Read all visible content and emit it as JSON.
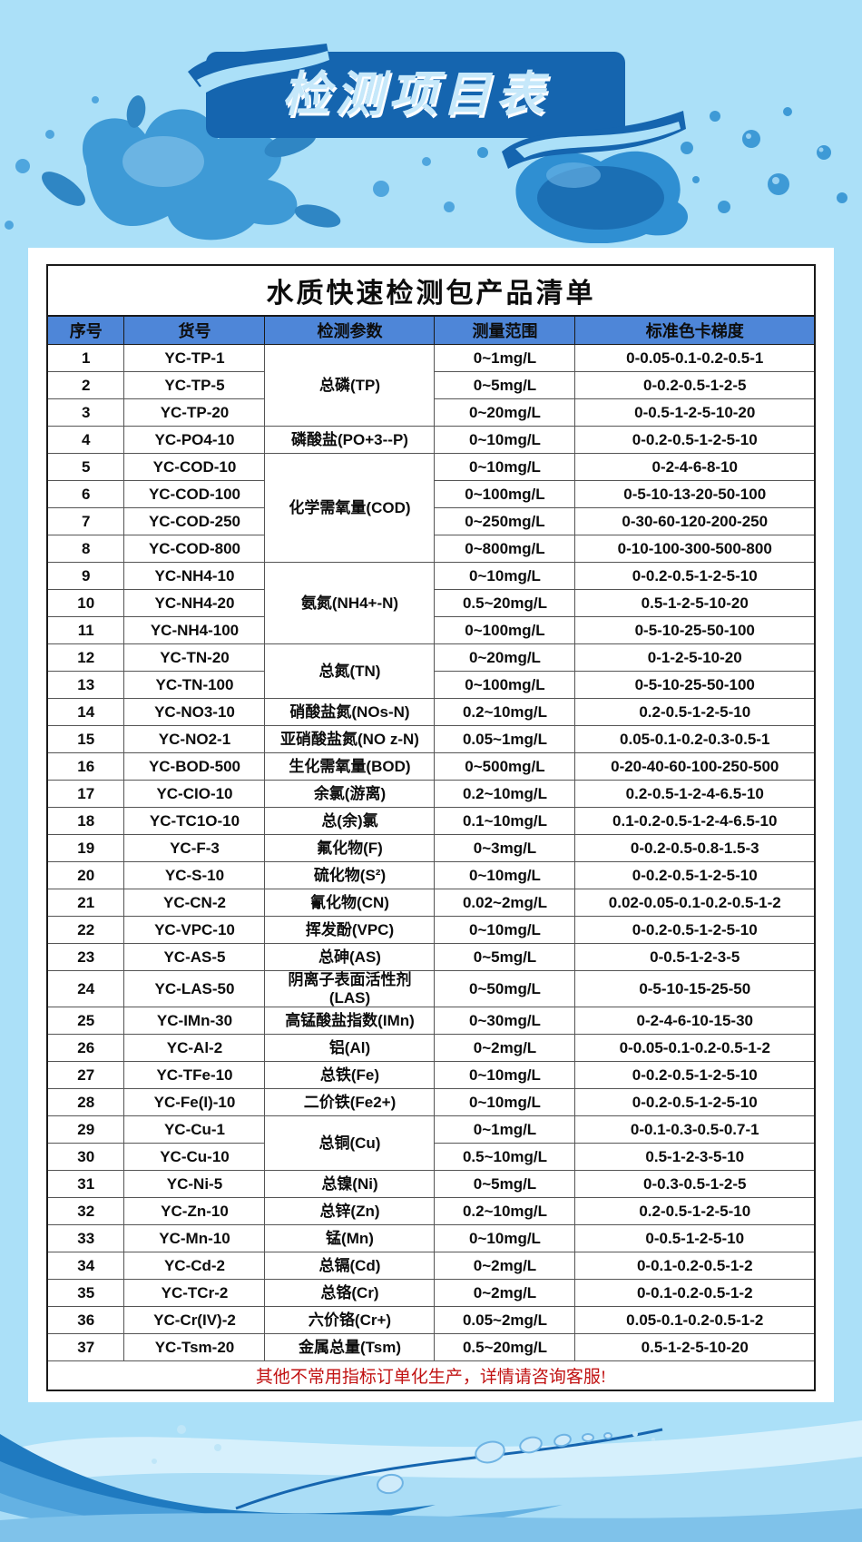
{
  "banner": {
    "title": "检测项目表"
  },
  "card": {
    "title": "水质快速检测包产品清单",
    "columns": [
      "序号",
      "货号",
      "检测参数",
      "测量范围",
      "标准色卡梯度"
    ],
    "footer_note": "其他不常用指标订单化生产，详情请咨询客服!",
    "rows": [
      {
        "no": "1",
        "code": "YC-TP-1",
        "param": "总磷(TP)",
        "param_rowspan": 3,
        "range": "0~1mg/L",
        "gradient": "0-0.05-0.1-0.2-0.5-1"
      },
      {
        "no": "2",
        "code": "YC-TP-5",
        "range": "0~5mg/L",
        "gradient": "0-0.2-0.5-1-2-5"
      },
      {
        "no": "3",
        "code": "YC-TP-20",
        "range": "0~20mg/L",
        "gradient": "0-0.5-1-2-5-10-20"
      },
      {
        "no": "4",
        "code": "YC-PO4-10",
        "param": "磷酸盐(PO+3--P)",
        "param_rowspan": 1,
        "range": "0~10mg/L",
        "gradient": "0-0.2-0.5-1-2-5-10"
      },
      {
        "no": "5",
        "code": "YC-COD-10",
        "param": "化学需氧量(COD)",
        "param_rowspan": 4,
        "range": "0~10mg/L",
        "gradient": "0-2-4-6-8-10"
      },
      {
        "no": "6",
        "code": "YC-COD-100",
        "range": "0~100mg/L",
        "gradient": "0-5-10-13-20-50-100"
      },
      {
        "no": "7",
        "code": "YC-COD-250",
        "range": "0~250mg/L",
        "gradient": "0-30-60-120-200-250"
      },
      {
        "no": "8",
        "code": "YC-COD-800",
        "range": "0~800mg/L",
        "gradient": "0-10-100-300-500-800"
      },
      {
        "no": "9",
        "code": "YC-NH4-10",
        "param": "氨氮(NH4+-N)",
        "param_rowspan": 3,
        "range": "0~10mg/L",
        "gradient": "0-0.2-0.5-1-2-5-10"
      },
      {
        "no": "10",
        "code": "YC-NH4-20",
        "range": "0.5~20mg/L",
        "gradient": "0.5-1-2-5-10-20"
      },
      {
        "no": "11",
        "code": "YC-NH4-100",
        "range": "0~100mg/L",
        "gradient": "0-5-10-25-50-100"
      },
      {
        "no": "12",
        "code": "YC-TN-20",
        "param": "总氮(TN)",
        "param_rowspan": 2,
        "range": "0~20mg/L",
        "gradient": "0-1-2-5-10-20"
      },
      {
        "no": "13",
        "code": "YC-TN-100",
        "range": "0~100mg/L",
        "gradient": "0-5-10-25-50-100"
      },
      {
        "no": "14",
        "code": "YC-NO3-10",
        "param": "硝酸盐氮(NOs-N)",
        "param_rowspan": 1,
        "range": "0.2~10mg/L",
        "gradient": "0.2-0.5-1-2-5-10"
      },
      {
        "no": "15",
        "code": "YC-NO2-1",
        "param": "亚硝酸盐氮(NO z-N)",
        "param_rowspan": 1,
        "range": "0.05~1mg/L",
        "gradient": "0.05-0.1-0.2-0.3-0.5-1"
      },
      {
        "no": "16",
        "code": "YC-BOD-500",
        "param": "生化需氧量(BOD)",
        "param_rowspan": 1,
        "range": "0~500mg/L",
        "gradient": "0-20-40-60-100-250-500"
      },
      {
        "no": "17",
        "code": "YC-CIO-10",
        "param": "余氯(游离)",
        "param_rowspan": 1,
        "range": "0.2~10mg/L",
        "gradient": "0.2-0.5-1-2-4-6.5-10"
      },
      {
        "no": "18",
        "code": "YC-TC1O-10",
        "param": "总(余)氯",
        "param_rowspan": 1,
        "range": "0.1~10mg/L",
        "gradient": "0.1-0.2-0.5-1-2-4-6.5-10"
      },
      {
        "no": "19",
        "code": "YC-F-3",
        "param": "氟化物(F)",
        "param_rowspan": 1,
        "range": "0~3mg/L",
        "gradient": "0-0.2-0.5-0.8-1.5-3"
      },
      {
        "no": "20",
        "code": "YC-S-10",
        "param": "硫化物(S²)",
        "param_rowspan": 1,
        "range": "0~10mg/L",
        "gradient": "0-0.2-0.5-1-2-5-10"
      },
      {
        "no": "21",
        "code": "YC-CN-2",
        "param": "氰化物(CN)",
        "param_rowspan": 1,
        "range": "0.02~2mg/L",
        "gradient": "0.02-0.05-0.1-0.2-0.5-1-2"
      },
      {
        "no": "22",
        "code": "YC-VPC-10",
        "param": "挥发酚(VPC)",
        "param_rowspan": 1,
        "range": "0~10mg/L",
        "gradient": "0-0.2-0.5-1-2-5-10"
      },
      {
        "no": "23",
        "code": "YC-AS-5",
        "param": "总砷(AS)",
        "param_rowspan": 1,
        "range": "0~5mg/L",
        "gradient": "0-0.5-1-2-3-5"
      },
      {
        "no": "24",
        "code": "YC-LAS-50",
        "param": "阴离子表面活性剂\n(LAS)",
        "param_rowspan": 1,
        "range": "0~50mg/L",
        "gradient": "0-5-10-15-25-50"
      },
      {
        "no": "25",
        "code": "YC-IMn-30",
        "param": "高锰酸盐指数(IMn)",
        "param_rowspan": 1,
        "range": "0~30mg/L",
        "gradient": "0-2-4-6-10-15-30"
      },
      {
        "no": "26",
        "code": "YC-Al-2",
        "param": "铝(Al)",
        "param_rowspan": 1,
        "range": "0~2mg/L",
        "gradient": "0-0.05-0.1-0.2-0.5-1-2"
      },
      {
        "no": "27",
        "code": "YC-TFe-10",
        "param": "总铁(Fe)",
        "param_rowspan": 1,
        "range": "0~10mg/L",
        "gradient": "0-0.2-0.5-1-2-5-10"
      },
      {
        "no": "28",
        "code": "YC-Fe(I)-10",
        "param": "二价铁(Fe2+)",
        "param_rowspan": 1,
        "range": "0~10mg/L",
        "gradient": "0-0.2-0.5-1-2-5-10"
      },
      {
        "no": "29",
        "code": "YC-Cu-1",
        "param": "总铜(Cu)",
        "param_rowspan": 2,
        "range": "0~1mg/L",
        "gradient": "0-0.1-0.3-0.5-0.7-1"
      },
      {
        "no": "30",
        "code": "YC-Cu-10",
        "range": "0.5~10mg/L",
        "gradient": "0.5-1-2-3-5-10"
      },
      {
        "no": "31",
        "code": "YC-Ni-5",
        "param": "总镍(Ni)",
        "param_rowspan": 1,
        "range": "0~5mg/L",
        "gradient": "0-0.3-0.5-1-2-5"
      },
      {
        "no": "32",
        "code": "YC-Zn-10",
        "param": "总锌(Zn)",
        "param_rowspan": 1,
        "range": "0.2~10mg/L",
        "gradient": "0.2-0.5-1-2-5-10"
      },
      {
        "no": "33",
        "code": "YC-Mn-10",
        "param": "锰(Mn)",
        "param_rowspan": 1,
        "range": "0~10mg/L",
        "gradient": "0-0.5-1-2-5-10"
      },
      {
        "no": "34",
        "code": "YC-Cd-2",
        "param": "总镉(Cd)",
        "param_rowspan": 1,
        "range": "0~2mg/L",
        "gradient": "0-0.1-0.2-0.5-1-2"
      },
      {
        "no": "35",
        "code": "YC-TCr-2",
        "param": "总铬(Cr)",
        "param_rowspan": 1,
        "range": "0~2mg/L",
        "gradient": "0-0.1-0.2-0.5-1-2"
      },
      {
        "no": "36",
        "code": "YC-Cr(IV)-2",
        "param": "六价铬(Cr+)",
        "param_rowspan": 1,
        "range": "0.05~2mg/L",
        "gradient": "0.05-0.1-0.2-0.5-1-2"
      },
      {
        "no": "37",
        "code": "YC-Tsm-20",
        "param": "金属总量(Tsm)",
        "param_rowspan": 1,
        "range": "0.5~20mg/L",
        "gradient": "0.5-1-2-5-10-20"
      }
    ]
  },
  "colors": {
    "page_background": "#ABE0F8",
    "banner_blue": "#1565AF",
    "banner_text": "#C6E8FA",
    "header_row_blue": "#4E86D8",
    "note_red": "#C11212",
    "table_border": "#1a1a1a"
  }
}
